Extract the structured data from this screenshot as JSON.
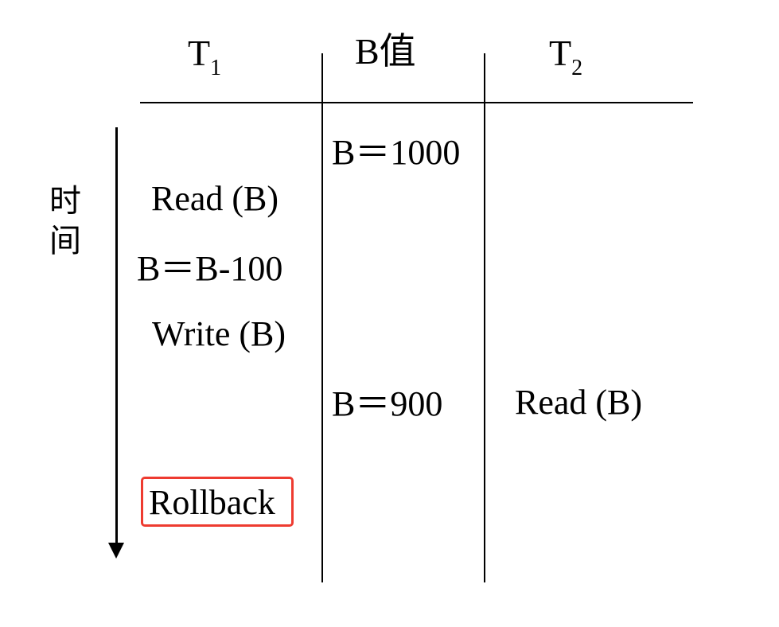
{
  "headers": {
    "t1_main": "T",
    "t1_sub": "1",
    "b_value": "B值",
    "t2_main": "T",
    "t2_sub": "2"
  },
  "time_axis": {
    "char1": "时",
    "char2": "间"
  },
  "t1_steps": [
    "Read (B)",
    "B＝B-100",
    "Write (B)",
    "Rollback"
  ],
  "b_values": [
    "B＝1000",
    "B＝900"
  ],
  "t2_steps": [
    "Read (B)"
  ],
  "colors": {
    "highlight_border": "#ee3b30",
    "line": "#000000"
  }
}
